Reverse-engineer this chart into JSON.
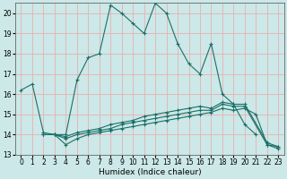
{
  "xlabel": "Humidex (Indice chaleur)",
  "xlim": [
    -0.5,
    23.5
  ],
  "ylim": [
    13,
    20.5
  ],
  "yticks": [
    13,
    14,
    15,
    16,
    17,
    18,
    19,
    20
  ],
  "xticks": [
    0,
    1,
    2,
    3,
    4,
    5,
    6,
    7,
    8,
    9,
    10,
    11,
    12,
    13,
    14,
    15,
    16,
    17,
    18,
    19,
    20,
    21,
    22,
    23
  ],
  "background_color": "#cce8e8",
  "grid_color": "#e8b0b0",
  "line_color": "#1a7068",
  "curve1": {
    "x": [
      0,
      1,
      2,
      3,
      4,
      5,
      6,
      7,
      8,
      9,
      10,
      11,
      12,
      13,
      14,
      15,
      16,
      17,
      18,
      19,
      20,
      21
    ],
    "y": [
      16.2,
      16.5,
      14.1,
      14.0,
      14.0,
      16.7,
      17.8,
      18.0,
      20.4,
      20.0,
      19.5,
      19.0,
      20.5,
      20.0,
      18.5,
      17.5,
      17.0,
      18.5,
      16.0,
      15.5,
      14.5,
      14.0
    ]
  },
  "curve2": {
    "x": [
      2,
      3,
      4,
      5,
      6,
      7,
      8,
      9,
      10,
      11,
      12,
      13,
      14,
      15,
      16,
      17,
      18,
      19,
      20,
      21,
      22,
      23
    ],
    "y": [
      14.0,
      14.0,
      13.5,
      13.8,
      14.0,
      14.1,
      14.2,
      14.3,
      14.4,
      14.5,
      14.6,
      14.7,
      14.8,
      14.9,
      15.0,
      15.1,
      15.3,
      15.2,
      15.3,
      15.0,
      13.5,
      13.3
    ]
  },
  "curve3": {
    "x": [
      2,
      3,
      4,
      5,
      6,
      7,
      8,
      9,
      10,
      11,
      12,
      13,
      14,
      15,
      16,
      17,
      18,
      19,
      20,
      22,
      23
    ],
    "y": [
      14.0,
      14.0,
      13.8,
      14.0,
      14.1,
      14.2,
      14.3,
      14.5,
      14.6,
      14.7,
      14.8,
      14.9,
      15.0,
      15.1,
      15.2,
      15.2,
      15.5,
      15.4,
      15.4,
      13.5,
      13.4
    ]
  },
  "curve4": {
    "x": [
      2,
      3,
      4,
      5,
      6,
      7,
      8,
      9,
      10,
      11,
      12,
      13,
      14,
      15,
      16,
      17,
      18,
      19,
      20,
      22,
      23
    ],
    "y": [
      14.0,
      14.0,
      13.9,
      14.1,
      14.2,
      14.3,
      14.5,
      14.6,
      14.7,
      14.9,
      15.0,
      15.1,
      15.2,
      15.3,
      15.4,
      15.3,
      15.6,
      15.5,
      15.5,
      13.6,
      13.4
    ]
  }
}
